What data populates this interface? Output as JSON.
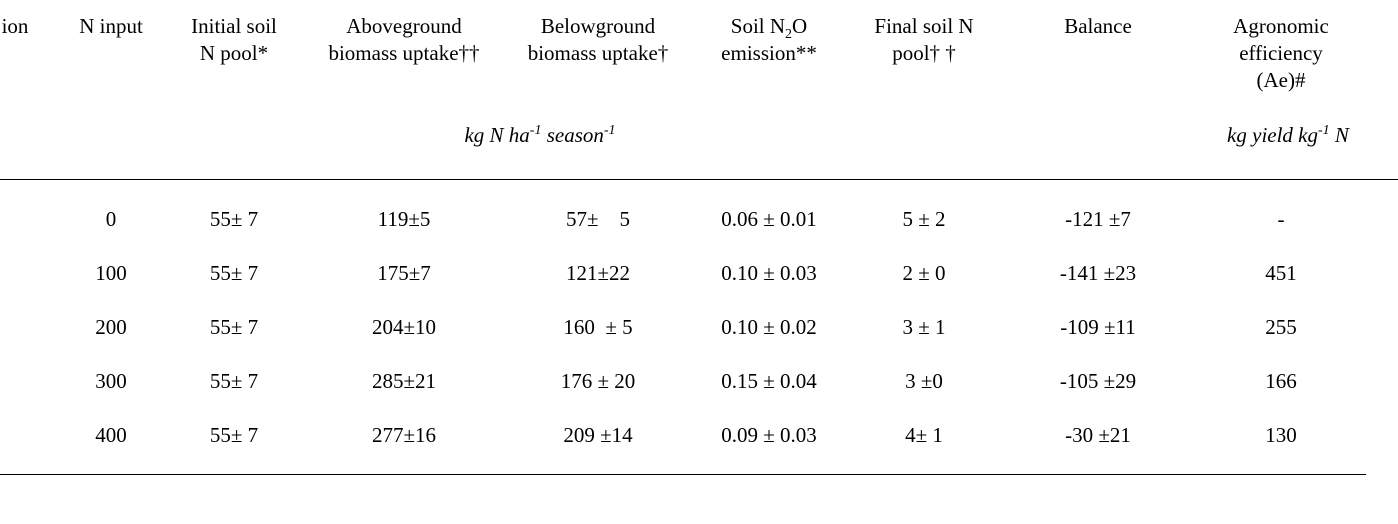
{
  "table": {
    "headers": [
      [
        "ion"
      ],
      [
        "N input"
      ],
      [
        "Initial soil",
        "N pool*"
      ],
      [
        "Aboveground",
        "biomass uptake††"
      ],
      [
        "Belowground",
        "biomass uptake†"
      ],
      [
        [
          "Soil N",
          "2",
          "O"
        ],
        "emission**"
      ],
      [
        "Final soil N",
        "pool† †"
      ],
      [
        "Balance"
      ],
      [
        "Agronomic",
        "efficiency",
        "(Ae)#"
      ]
    ],
    "units": [
      [
        "kg N ha",
        "-1",
        " season",
        "-1"
      ],
      [
        "kg yield kg",
        "-1",
        " N"
      ]
    ],
    "rows": [
      [
        "0",
        "55± 7",
        "119±5",
        "57±    5",
        "0.06 ± 0.01",
        "5 ± 2",
        "-121 ±7",
        "-"
      ],
      [
        "100",
        "55± 7",
        "175±7",
        "121±22",
        "0.10 ± 0.03",
        "2 ± 0",
        "-141 ±23",
        "451"
      ],
      [
        "200",
        "55± 7",
        "204±10",
        "160  ± 5",
        "0.10 ± 0.02",
        "3 ± 1",
        "-109 ±11",
        "255"
      ],
      [
        "300",
        "55± 7",
        "285±21",
        "176 ± 20",
        "0.15 ± 0.04",
        "3 ±0",
        "-105 ±29",
        "166"
      ],
      [
        "400",
        "55± 7",
        "277±16",
        "209 ±14",
        "0.09 ± 0.03",
        "4± 1",
        "-30 ±21",
        "130"
      ]
    ]
  }
}
